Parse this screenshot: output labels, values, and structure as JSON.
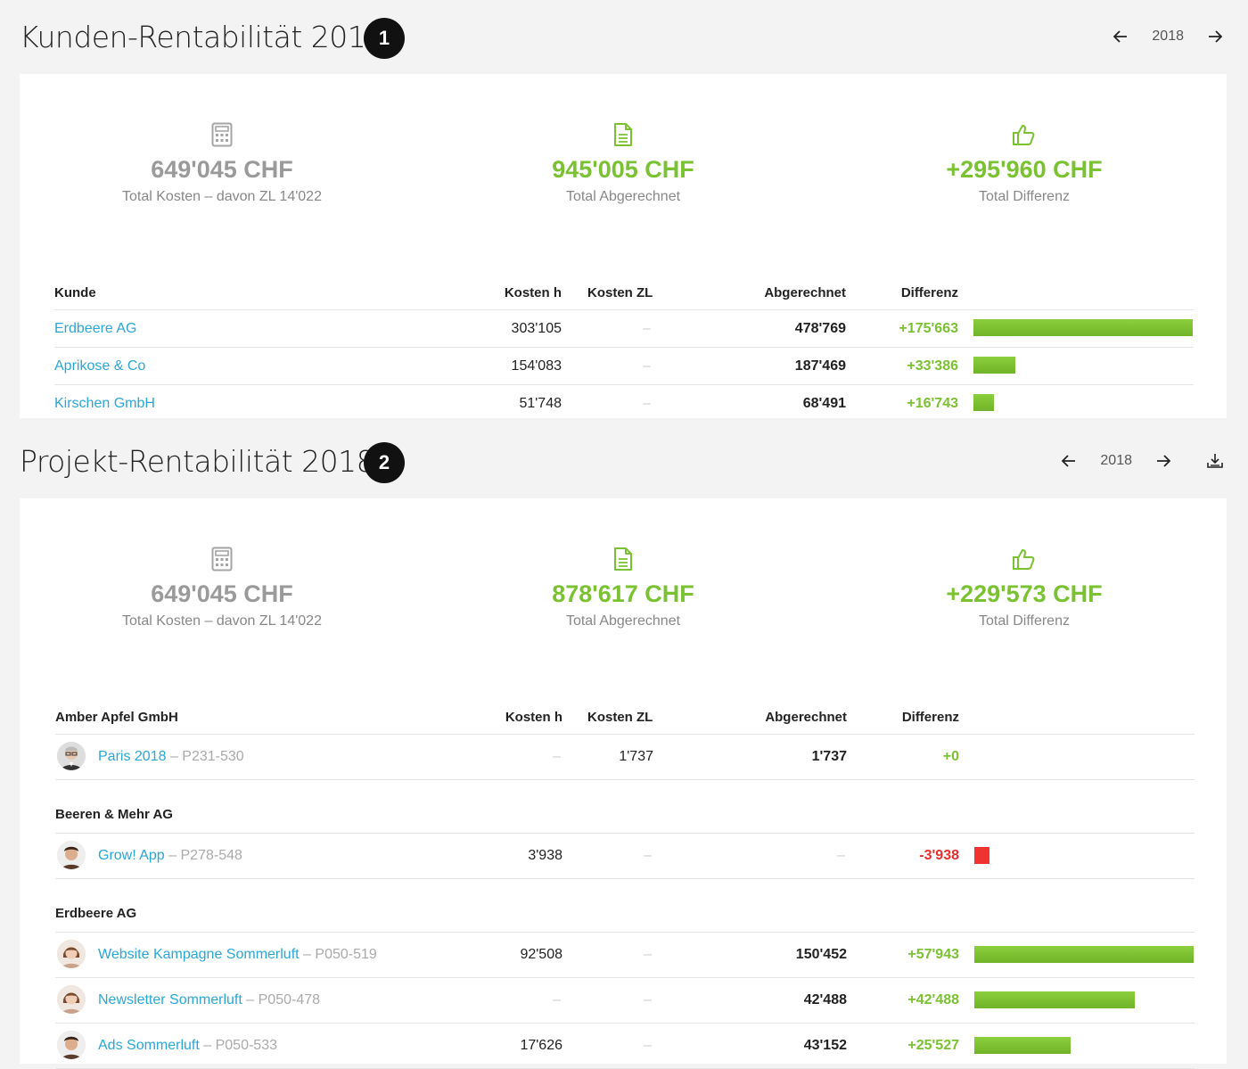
{
  "customer_section": {
    "title": "Kunden-Rentabilität 2018",
    "step": "1",
    "year": "2018",
    "kpis": [
      {
        "icon": "calculator-icon",
        "value": "649'045 CHF",
        "label": "Total Kosten – davon ZL 14'022",
        "color": "#9a9a9a"
      },
      {
        "icon": "document-icon",
        "value": "945'005 CHF",
        "label": "Total Abgerechnet",
        "color": "#7ac231"
      },
      {
        "icon": "thumbs-up-icon",
        "value": "+295'960 CHF",
        "label": "Total Differenz",
        "color": "#7ac231"
      }
    ],
    "columns": {
      "name": "Kunde",
      "kosten_h": "Kosten h",
      "kosten_zl": "Kosten ZL",
      "abgerechnet": "Abgerechnet",
      "differenz": "Differenz"
    },
    "rows": [
      {
        "name": "Erdbeere AG",
        "kosten_h": "303'105",
        "kosten_zl": "–",
        "abgerechnet": "478'769",
        "differenz": "+175'663",
        "bar_value": 175663
      },
      {
        "name": "Aprikose & Co",
        "kosten_h": "154'083",
        "kosten_zl": "–",
        "abgerechnet": "187'469",
        "differenz": "+33'386",
        "bar_value": 33386
      },
      {
        "name": "Kirschen GmbH",
        "kosten_h": "51'748",
        "kosten_zl": "–",
        "abgerechnet": "68'491",
        "differenz": "+16'743",
        "bar_value": 16743
      }
    ]
  },
  "project_section": {
    "title": "Projekt-Rentabilität 2018",
    "step": "2",
    "year": "2018",
    "kpis": [
      {
        "icon": "calculator-icon",
        "value": "649'045 CHF",
        "label": "Total Kosten – davon ZL 14'022",
        "color": "#9a9a9a"
      },
      {
        "icon": "document-icon",
        "value": "878'617 CHF",
        "label": "Total Abgerechnet",
        "color": "#7ac231"
      },
      {
        "icon": "thumbs-up-icon",
        "value": "+229'573 CHF",
        "label": "Total Differenz",
        "color": "#7ac231"
      }
    ],
    "columns": {
      "kosten_h": "Kosten h",
      "kosten_zl": "Kosten ZL",
      "abgerechnet": "Abgerechnet",
      "differenz": "Differenz"
    },
    "groups": [
      {
        "name": "Amber Apfel GmbH",
        "projects": [
          {
            "name": "Paris 2018",
            "code": "– P231-530",
            "avatar": "avatar-man-glasses",
            "kosten_h": "–",
            "kosten_zl": "1'737",
            "abgerechnet": "1'737",
            "differenz": "+0",
            "bar_value": 0
          }
        ]
      },
      {
        "name": "Beeren & Mehr AG",
        "projects": [
          {
            "name": "Grow! App",
            "code": "– P278-548",
            "avatar": "avatar-man-dark",
            "kosten_h": "3'938",
            "kosten_zl": "–",
            "abgerechnet": "–",
            "differenz": "-3'938",
            "bar_value": -3938
          }
        ]
      },
      {
        "name": "Erdbeere AG",
        "projects": [
          {
            "name": "Website Kampagne Sommerluft",
            "code": "– P050-519",
            "avatar": "avatar-woman",
            "kosten_h": "92'508",
            "kosten_zl": "–",
            "abgerechnet": "150'452",
            "differenz": "+57'943",
            "bar_value": 57943
          },
          {
            "name": "Newsletter Sommerluft",
            "code": "– P050-478",
            "avatar": "avatar-woman",
            "kosten_h": "–",
            "kosten_zl": "–",
            "abgerechnet": "42'488",
            "differenz": "+42'488",
            "bar_value": 42488
          },
          {
            "name": "Ads Sommerluft",
            "code": "– P050-533",
            "avatar": "avatar-man-dark",
            "kosten_h": "17'626",
            "kosten_zl": "–",
            "abgerechnet": "43'152",
            "differenz": "+25'527",
            "bar_value": 25527
          }
        ]
      }
    ]
  }
}
